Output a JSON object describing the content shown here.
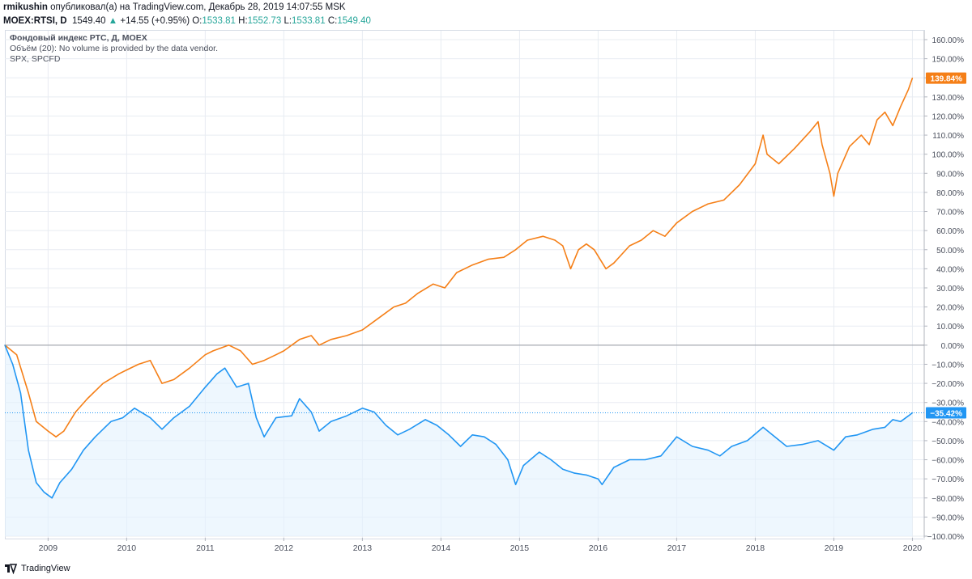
{
  "header": {
    "author": "rmikushin",
    "published_text": " опубликовал(а) на TradingView.com, Декабрь 28, 2019 14:07:55 MSK",
    "symbol": "MOEX:RTSI, D",
    "last": "1549.40",
    "change_arrow": "▲",
    "change": "+14.55 (+0.95%)",
    "o_label": "O:",
    "o_value": "1533.81",
    "h_label": "H:",
    "h_value": "1552.73",
    "l_label": "L:",
    "l_value": "1533.81",
    "c_label": "C:",
    "c_value": "1549.40"
  },
  "legend": {
    "title": "Фондовый индекс РТС, Д, MOEX",
    "volume_note": "Объём (20): No volume is provided by the data vendor.",
    "compare_symbol": "SPX, SPCFD"
  },
  "footer": {
    "brand": "TradingView"
  },
  "colors": {
    "spx": "#f57f17",
    "rts": "#2196f3",
    "rts_fill": "#e3f2fd",
    "grid": "#e8ecf2",
    "axis_text": "#4a4f5c"
  },
  "chart_data": {
    "type": "line",
    "title": "Фондовый индекс РТС, Д, MOEX",
    "xlabel": "",
    "ylabel": "",
    "x_ticks": [
      "2009",
      "2010",
      "2011",
      "2012",
      "2013",
      "2014",
      "2015",
      "2016",
      "2017",
      "2018",
      "2019",
      "2020"
    ],
    "y_ticks": [
      "160.00%",
      "150.00%",
      "140.00%",
      "130.00%",
      "120.00%",
      "110.00%",
      "100.00%",
      "90.00%",
      "80.00%",
      "70.00%",
      "60.00%",
      "50.00%",
      "40.00%",
      "30.00%",
      "20.00%",
      "10.00%",
      "0.00%",
      "−10.00%",
      "−20.00%",
      "−30.00%",
      "−40.00%",
      "−50.00%",
      "−60.00%",
      "−70.00%",
      "−80.00%",
      "−90.00%",
      "−100.00%"
    ],
    "ylim": [
      -100,
      160
    ],
    "xlim": [
      2008.45,
      2020.15
    ],
    "series": [
      {
        "name": "SPX, SPCFD",
        "last_label": "139.84%",
        "points": [
          [
            2008.45,
            0
          ],
          [
            2008.6,
            -5
          ],
          [
            2008.75,
            -25
          ],
          [
            2008.85,
            -40
          ],
          [
            2009.0,
            -45
          ],
          [
            2009.1,
            -48
          ],
          [
            2009.2,
            -45
          ],
          [
            2009.35,
            -35
          ],
          [
            2009.5,
            -28
          ],
          [
            2009.7,
            -20
          ],
          [
            2009.9,
            -15
          ],
          [
            2010.0,
            -13
          ],
          [
            2010.15,
            -10
          ],
          [
            2010.3,
            -8
          ],
          [
            2010.45,
            -20
          ],
          [
            2010.6,
            -18
          ],
          [
            2010.8,
            -12
          ],
          [
            2011.0,
            -5
          ],
          [
            2011.1,
            -3
          ],
          [
            2011.3,
            0
          ],
          [
            2011.45,
            -3
          ],
          [
            2011.6,
            -10
          ],
          [
            2011.75,
            -8
          ],
          [
            2011.9,
            -5
          ],
          [
            2012.0,
            -3
          ],
          [
            2012.2,
            3
          ],
          [
            2012.35,
            5
          ],
          [
            2012.45,
            0
          ],
          [
            2012.6,
            3
          ],
          [
            2012.8,
            5
          ],
          [
            2013.0,
            8
          ],
          [
            2013.2,
            14
          ],
          [
            2013.4,
            20
          ],
          [
            2013.55,
            22
          ],
          [
            2013.7,
            27
          ],
          [
            2013.9,
            32
          ],
          [
            2014.05,
            30
          ],
          [
            2014.2,
            38
          ],
          [
            2014.4,
            42
          ],
          [
            2014.6,
            45
          ],
          [
            2014.8,
            46
          ],
          [
            2014.95,
            50
          ],
          [
            2015.1,
            55
          ],
          [
            2015.3,
            57
          ],
          [
            2015.45,
            55
          ],
          [
            2015.55,
            52
          ],
          [
            2015.65,
            40
          ],
          [
            2015.75,
            50
          ],
          [
            2015.85,
            53
          ],
          [
            2015.95,
            50
          ],
          [
            2016.1,
            40
          ],
          [
            2016.2,
            43
          ],
          [
            2016.4,
            52
          ],
          [
            2016.55,
            55
          ],
          [
            2016.7,
            60
          ],
          [
            2016.85,
            57
          ],
          [
            2017.0,
            64
          ],
          [
            2017.2,
            70
          ],
          [
            2017.4,
            74
          ],
          [
            2017.6,
            76
          ],
          [
            2017.8,
            84
          ],
          [
            2018.0,
            95
          ],
          [
            2018.1,
            110
          ],
          [
            2018.15,
            100
          ],
          [
            2018.3,
            95
          ],
          [
            2018.5,
            103
          ],
          [
            2018.7,
            112
          ],
          [
            2018.8,
            117
          ],
          [
            2018.85,
            105
          ],
          [
            2018.95,
            90
          ],
          [
            2019.0,
            78
          ],
          [
            2019.05,
            90
          ],
          [
            2019.2,
            104
          ],
          [
            2019.35,
            110
          ],
          [
            2019.45,
            105
          ],
          [
            2019.55,
            118
          ],
          [
            2019.65,
            122
          ],
          [
            2019.75,
            115
          ],
          [
            2019.85,
            125
          ],
          [
            2019.95,
            134
          ],
          [
            2020.0,
            139.84
          ]
        ]
      },
      {
        "name": "Фондовый индекс РТС",
        "last_label": "−35.42%",
        "points": [
          [
            2008.45,
            0
          ],
          [
            2008.55,
            -10
          ],
          [
            2008.65,
            -25
          ],
          [
            2008.75,
            -55
          ],
          [
            2008.85,
            -72
          ],
          [
            2008.95,
            -77
          ],
          [
            2009.05,
            -80
          ],
          [
            2009.15,
            -72
          ],
          [
            2009.3,
            -65
          ],
          [
            2009.45,
            -55
          ],
          [
            2009.6,
            -48
          ],
          [
            2009.8,
            -40
          ],
          [
            2009.95,
            -38
          ],
          [
            2010.1,
            -33
          ],
          [
            2010.3,
            -38
          ],
          [
            2010.45,
            -44
          ],
          [
            2010.6,
            -38
          ],
          [
            2010.8,
            -32
          ],
          [
            2011.0,
            -22
          ],
          [
            2011.15,
            -15
          ],
          [
            2011.25,
            -12
          ],
          [
            2011.4,
            -22
          ],
          [
            2011.55,
            -20
          ],
          [
            2011.65,
            -38
          ],
          [
            2011.75,
            -48
          ],
          [
            2011.9,
            -38
          ],
          [
            2012.1,
            -37
          ],
          [
            2012.2,
            -28
          ],
          [
            2012.35,
            -35
          ],
          [
            2012.45,
            -45
          ],
          [
            2012.6,
            -40
          ],
          [
            2012.8,
            -37
          ],
          [
            2013.0,
            -33
          ],
          [
            2013.15,
            -35
          ],
          [
            2013.3,
            -42
          ],
          [
            2013.45,
            -47
          ],
          [
            2013.6,
            -44
          ],
          [
            2013.8,
            -39
          ],
          [
            2013.95,
            -42
          ],
          [
            2014.1,
            -47
          ],
          [
            2014.25,
            -53
          ],
          [
            2014.4,
            -47
          ],
          [
            2014.55,
            -48
          ],
          [
            2014.7,
            -52
          ],
          [
            2014.85,
            -60
          ],
          [
            2014.95,
            -73
          ],
          [
            2015.05,
            -63
          ],
          [
            2015.25,
            -56
          ],
          [
            2015.4,
            -60
          ],
          [
            2015.55,
            -65
          ],
          [
            2015.7,
            -67
          ],
          [
            2015.85,
            -68
          ],
          [
            2016.0,
            -70
          ],
          [
            2016.05,
            -73
          ],
          [
            2016.2,
            -64
          ],
          [
            2016.4,
            -60
          ],
          [
            2016.6,
            -60
          ],
          [
            2016.8,
            -58
          ],
          [
            2017.0,
            -48
          ],
          [
            2017.2,
            -53
          ],
          [
            2017.4,
            -55
          ],
          [
            2017.55,
            -58
          ],
          [
            2017.7,
            -53
          ],
          [
            2017.9,
            -50
          ],
          [
            2018.1,
            -43
          ],
          [
            2018.25,
            -48
          ],
          [
            2018.4,
            -53
          ],
          [
            2018.6,
            -52
          ],
          [
            2018.8,
            -50
          ],
          [
            2019.0,
            -55
          ],
          [
            2019.15,
            -48
          ],
          [
            2019.3,
            -47
          ],
          [
            2019.5,
            -44
          ],
          [
            2019.65,
            -43
          ],
          [
            2019.75,
            -39
          ],
          [
            2019.85,
            -40
          ],
          [
            2019.95,
            -37
          ],
          [
            2020.0,
            -35.42
          ]
        ]
      }
    ]
  }
}
